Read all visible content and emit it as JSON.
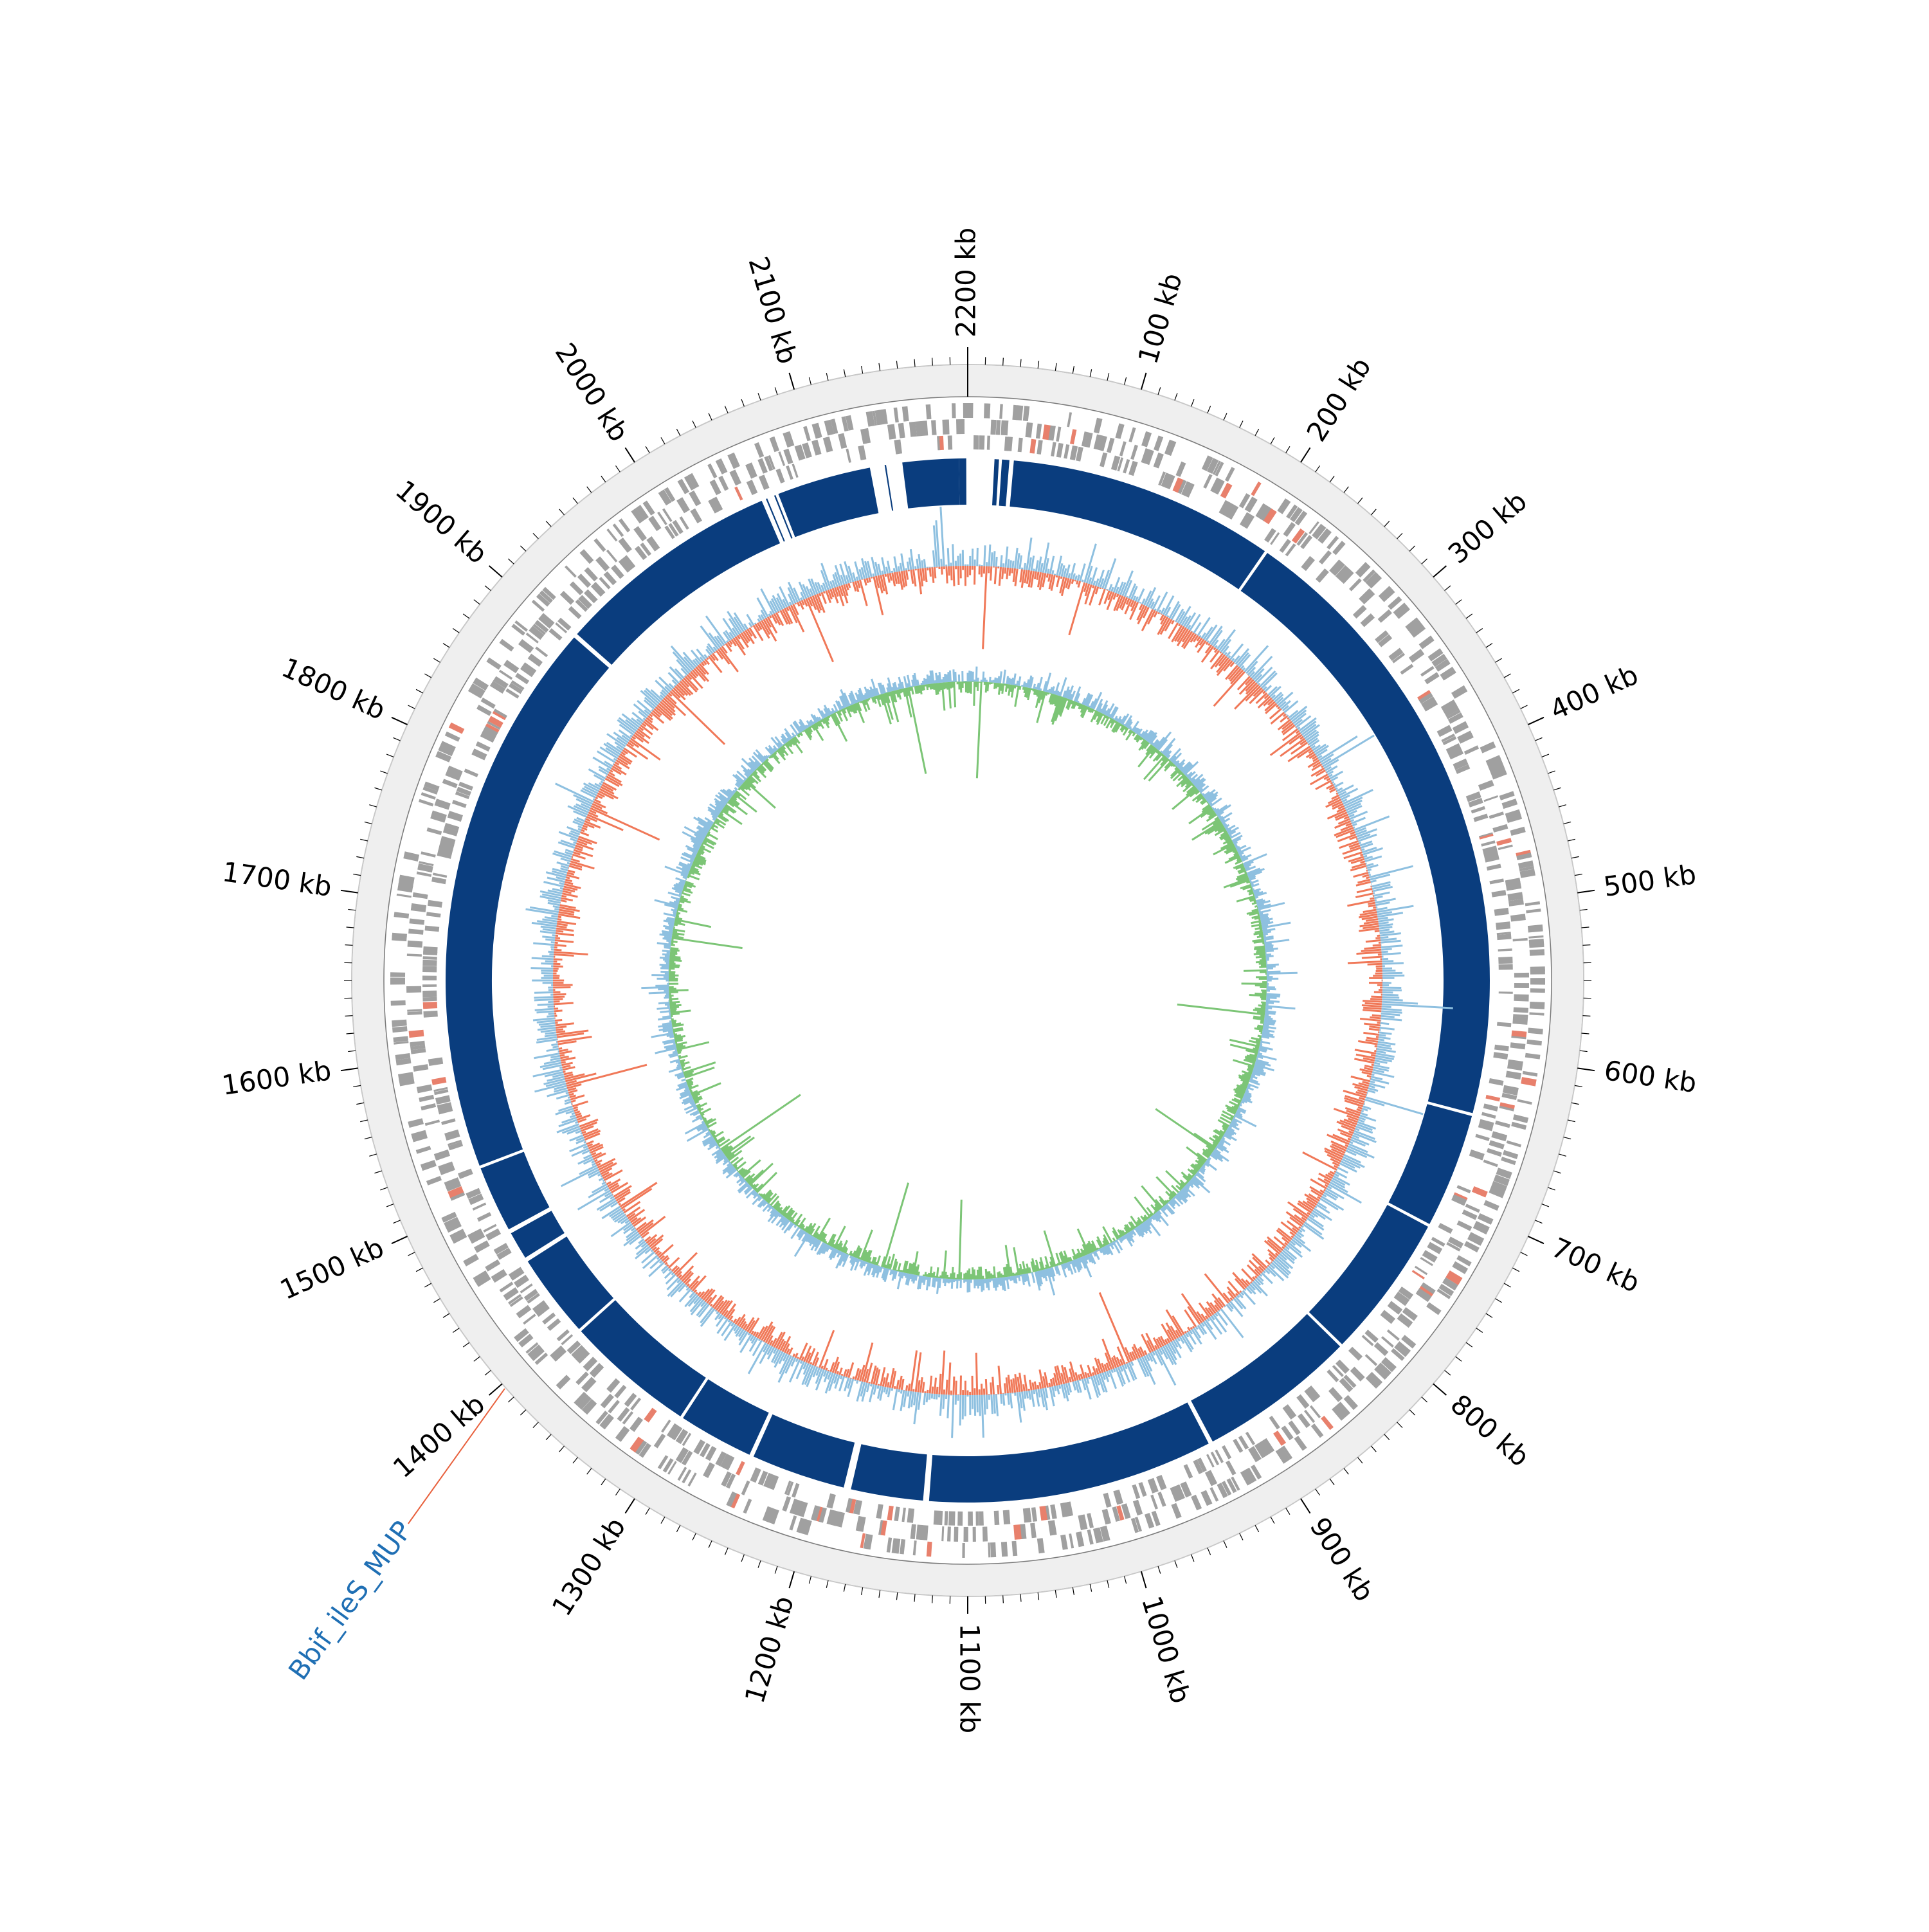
{
  "genome": {
    "length_kb": 2200
  },
  "axis": {
    "major_tick_kb": 100,
    "minor_tick_kb": 10,
    "tick_labels": [
      {
        "kb": 0,
        "label": "2200 kb"
      },
      {
        "kb": 100,
        "label": "100 kb"
      },
      {
        "kb": 200,
        "label": "200 kb"
      },
      {
        "kb": 300,
        "label": "300 kb"
      },
      {
        "kb": 400,
        "label": "400 kb"
      },
      {
        "kb": 500,
        "label": "500 kb"
      },
      {
        "kb": 600,
        "label": "600 kb"
      },
      {
        "kb": 700,
        "label": "700 kb"
      },
      {
        "kb": 800,
        "label": "800 kb"
      },
      {
        "kb": 900,
        "label": "900 kb"
      },
      {
        "kb": 1000,
        "label": "1000 kb"
      },
      {
        "kb": 1100,
        "label": "1100 kb"
      },
      {
        "kb": 1200,
        "label": "1200 kb"
      },
      {
        "kb": 1300,
        "label": "1300 kb"
      },
      {
        "kb": 1400,
        "label": "1400 kb"
      },
      {
        "kb": 1500,
        "label": "1500 kb"
      },
      {
        "kb": 1600,
        "label": "1600 kb"
      },
      {
        "kb": 1700,
        "label": "1700 kb"
      },
      {
        "kb": 1800,
        "label": "1800 kb"
      },
      {
        "kb": 1900,
        "label": "1900 kb"
      },
      {
        "kb": 2000,
        "label": "2000 kb"
      },
      {
        "kb": 2100,
        "label": "2100 kb"
      }
    ]
  },
  "annotation": {
    "label": "Bbif_ileS_MUP",
    "position_kb": 1397,
    "label_color": "#1f6fb4",
    "line_color": "#e8603c"
  },
  "colors": {
    "ring_background": "#efefef",
    "genes_gray": "#a0a0a0",
    "genes_highlight": "#e8806c",
    "homology_blue": "#0a3d7e",
    "gc_content_up": "#8ec0e0",
    "gc_content_down": "#f07858",
    "gc_skew_up": "#8ec0e0",
    "gc_skew_down": "#7cc576"
  },
  "homology_blocks_kb": [
    [
      2194,
      2199
    ],
    [
      18,
      21
    ],
    [
      23,
      28
    ],
    [
      31,
      212
    ],
    [
      214,
      640
    ],
    [
      642,
      720
    ],
    [
      722,
      820
    ],
    [
      822,
      929
    ],
    [
      932,
      1126
    ],
    [
      1130,
      1179
    ],
    [
      1184,
      1248
    ],
    [
      1251,
      1302
    ],
    [
      1304,
      1392
    ],
    [
      1394,
      1451
    ],
    [
      1454,
      1473
    ],
    [
      1476,
      1521
    ],
    [
      1523,
      1901
    ],
    [
      1904,
      2058
    ],
    [
      2061,
      2062
    ],
    [
      2067,
      2068
    ],
    [
      2070,
      2134
    ],
    [
      2144,
      2145
    ],
    [
      2156,
      2194
    ]
  ],
  "gc_spikes_kb": [
    {
      "kb": 16,
      "kind": "down",
      "h": 0.9
    },
    {
      "kb": 100,
      "kind": "down",
      "h": 0.5
    },
    {
      "kb": 360,
      "kind": "up",
      "h": 0.7
    },
    {
      "kb": 570,
      "kind": "up",
      "h": 0.9
    },
    {
      "kb": 650,
      "kind": "up",
      "h": 0.7
    },
    {
      "kb": 960,
      "kind": "down",
      "h": 0.8
    },
    {
      "kb": 1560,
      "kind": "down",
      "h": 0.9
    },
    {
      "kb": 1800,
      "kind": "down",
      "h": 0.8
    },
    {
      "kb": 1920,
      "kind": "down",
      "h": 0.8
    },
    {
      "kb": 2060,
      "kind": "down",
      "h": 0.7
    },
    {
      "kb": 2180,
      "kind": "up",
      "h": 0.7
    }
  ],
  "skew_spikes_kb": [
    {
      "kb": 16,
      "kind": "down",
      "h": 1.0
    },
    {
      "kb": 2130,
      "kind": "down",
      "h": 0.9
    },
    {
      "kb": 590,
      "kind": "down",
      "h": 0.9
    },
    {
      "kb": 1110,
      "kind": "down",
      "h": 0.8
    },
    {
      "kb": 1200,
      "kind": "down",
      "h": 0.9
    },
    {
      "kb": 1440,
      "kind": "down",
      "h": 1.0
    },
    {
      "kb": 1700,
      "kind": "down",
      "h": 0.7
    },
    {
      "kb": 760,
      "kind": "down",
      "h": 0.7
    }
  ]
}
